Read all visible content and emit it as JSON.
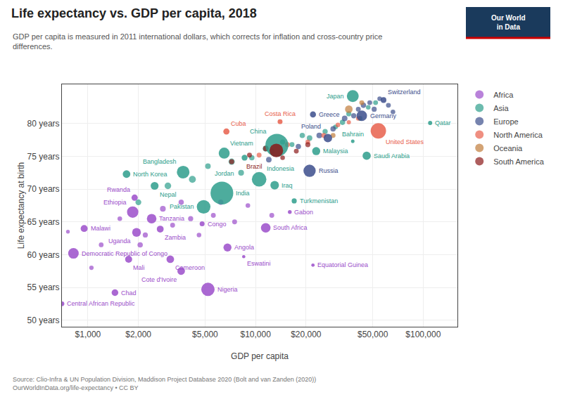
{
  "chart_data": {
    "type": "scatter",
    "title": "Life expectancy vs. GDP per capita, 2018",
    "subtitle": "GDP per capita is measured in 2011 international dollars, which corrects for inflation and cross-country price\ndifferences.",
    "xlabel": "GDP per capita",
    "ylabel": "Life expectancy at birth",
    "source": "Source: Clio-Infra & UN Population Division, Maddison Project Database 2020 (Bolt and van Zanden (2020))\nOurWorldInData.org/life-expectancy • CC BY",
    "annotations": [
      "Our World\nin Data"
    ],
    "log": "x",
    "grid": true,
    "legend": "right",
    "marker": "circle",
    "xlim": [
      700,
      160000
    ],
    "ylim": [
      49,
      86
    ],
    "xticks": [
      {
        "value": 1000,
        "label": "$1,000"
      },
      {
        "value": 2000,
        "label": "$2,000"
      },
      {
        "value": 5000,
        "label": "$5,000"
      },
      {
        "value": 10000,
        "label": "$10,000"
      },
      {
        "value": 20000,
        "label": "$20,000"
      },
      {
        "value": 50000,
        "label": "$50,000"
      },
      {
        "value": 100000,
        "label": "$100,000"
      }
    ],
    "yticks": [
      {
        "value": 50,
        "label": "50 years"
      },
      {
        "value": 55,
        "label": "55 years"
      },
      {
        "value": 60,
        "label": "60 years"
      },
      {
        "value": 65,
        "label": "65 years"
      },
      {
        "value": 70,
        "label": "70 years"
      },
      {
        "value": 75,
        "label": "75 years"
      },
      {
        "value": 80,
        "label": "80 years"
      }
    ],
    "series": [
      {
        "name": "Africa",
        "color": "#9B4DCA",
        "labels": [
          "Central African Republic",
          "Democratic Republic of Congo",
          "Malawi",
          "Mali",
          "Chad",
          "Ethiopia",
          "Rwanda",
          "Uganda",
          "Tanzania",
          "Zambia",
          "Congo",
          "Cameroon",
          "Cote d'Ivoire",
          "Nigeria",
          "Angola",
          "Eswatini",
          "South Africa",
          "Gabon",
          "Equatorial Guinea",
          null,
          null,
          null,
          null,
          null,
          null,
          null,
          null,
          null,
          null,
          null,
          null,
          null,
          null,
          null,
          null
        ],
        "x": [
          700,
          820,
          950,
          1750,
          1450,
          1850,
          1900,
          1950,
          2400,
          2700,
          4800,
          3100,
          3600,
          5200,
          6800,
          8500,
          11500,
          16000,
          22000,
          760,
          1050,
          1200,
          1550,
          2050,
          2200,
          2800,
          3200,
          3600,
          4100,
          4600,
          5600,
          6200,
          7500,
          9000,
          12500
        ],
        "values": [
          52.5,
          60.2,
          64.0,
          59.3,
          54.2,
          66.5,
          68.7,
          63.4,
          65.5,
          63.9,
          64.7,
          59.3,
          57.5,
          54.7,
          61.1,
          59.7,
          64.1,
          66.5,
          58.4,
          63.5,
          58.0,
          61.5,
          65.5,
          61.5,
          63.0,
          67.0,
          64.5,
          68.0,
          65.5,
          63.0,
          66.0,
          68.0,
          65.0,
          67.5,
          66.0
        ],
        "pop": [
          4745000,
          84070000,
          18629000,
          19080000,
          15780000,
          109220000,
          12310000,
          42860000,
          57310000,
          17350000,
          5245000,
          25220000,
          25070000,
          195880000,
          30810000,
          1148000,
          57780000,
          2050000,
          1309000,
          2000000,
          3500000,
          4500000,
          4000000,
          7000000,
          6000000,
          9000000,
          5000000,
          7000000,
          6000000,
          4000000,
          5000000,
          7000000,
          5000000,
          4000000,
          5000000
        ]
      },
      {
        "name": "Asia",
        "color": "#2E9E8C",
        "labels": [
          "North Korea",
          "Bangladesh",
          "Nepal",
          "Pakistan",
          "India",
          "Vietnam",
          "Indonesia",
          "Iraq",
          "Jordan",
          "China",
          "Malaysia",
          "Bahrain",
          "Saudi Arabia",
          "Japan",
          "Qatar",
          "Turkmenistan",
          null,
          null,
          null,
          null,
          null,
          null,
          null,
          null,
          null,
          null,
          null,
          null,
          null,
          null,
          null,
          null,
          null,
          null,
          null,
          null
        ],
        "x": [
          1700,
          3700,
          2500,
          4900,
          6300,
          6500,
          10500,
          13000,
          8600,
          13400,
          23000,
          38000,
          46000,
          38000,
          110000,
          17000,
          2000,
          3000,
          4200,
          5200,
          7200,
          8200,
          9500,
          11500,
          12500,
          14500,
          16500,
          19000,
          21000,
          26000,
          30000,
          33000,
          36000,
          42000,
          47000,
          52000
        ],
        "values": [
          72.3,
          72.6,
          70.5,
          67.3,
          69.4,
          75.5,
          71.5,
          70.6,
          74.8,
          76.7,
          75.8,
          77.3,
          75.1,
          84.2,
          80.1,
          68.2,
          68.0,
          70.5,
          71.5,
          73.5,
          74.2,
          72.5,
          74.8,
          76.2,
          75.8,
          77.2,
          76.8,
          78.2,
          77.8,
          78.8,
          79.5,
          80.2,
          81.5,
          80.8,
          82.5,
          83.2
        ],
        "pop": [
          25550000,
          161380000,
          28090000,
          212230000,
          1352620000,
          95540000,
          267670000,
          38430000,
          9956000,
          1392730000,
          31530000,
          1569000,
          33700000,
          126530000,
          2781000,
          5851000,
          10000000,
          15000000,
          18000000,
          8000000,
          12000000,
          9000000,
          7000000,
          11000000,
          8000000,
          6000000,
          5000000,
          7000000,
          8000000,
          6000000,
          5000000,
          7000000,
          6000000,
          5000000,
          4000000,
          5000000
        ]
      },
      {
        "name": "Europe",
        "color": "#3C4E8C",
        "labels": [
          "Russia",
          "Poland",
          "Greece",
          "Germany",
          "Switzerland",
          null,
          null,
          null,
          null,
          null,
          null,
          null,
          null,
          null,
          null,
          null,
          null,
          null
        ],
        "x": [
          21000,
          27000,
          22000,
          43000,
          58000,
          12000,
          18000,
          24000,
          29000,
          34000,
          38500,
          41000,
          44000,
          48000,
          51000,
          55000,
          62000,
          66000
        ],
        "values": [
          72.8,
          77.8,
          81.4,
          81.2,
          83.6,
          74.5,
          76.5,
          78.2,
          79.2,
          80.8,
          81.2,
          82.2,
          82.8,
          83.2,
          82.2,
          83.8,
          82.8,
          81.8
        ],
        "pop": [
          144500000,
          37980000,
          10730000,
          82790000,
          8510000,
          8000000,
          7000000,
          9000000,
          7000000,
          8000000,
          6000000,
          5000000,
          7000000,
          5000000,
          6000000,
          4000000,
          5000000,
          4000000
        ]
      },
      {
        "name": "North America",
        "color": "#E8604C",
        "labels": [
          "Cuba",
          "Costa Rica",
          "United States",
          null,
          null,
          null,
          null,
          null,
          null,
          null
        ],
        "x": [
          6700,
          14000,
          54000,
          10500,
          15500,
          20500,
          25500,
          31000,
          36000,
          41000
        ],
        "values": [
          78.8,
          80.3,
          78.9,
          75.2,
          76.8,
          77.2,
          78.2,
          79.8,
          80.2,
          80.8
        ],
        "pop": [
          11338000,
          4999000,
          327167000,
          5000000,
          6000000,
          4000000,
          5000000,
          4000000,
          3000000,
          4000000
        ]
      },
      {
        "name": "Oceania",
        "color": "#C07C3A",
        "x": [
          29000,
          36000,
          43000
        ],
        "values": [
          78.2,
          82.2,
          83.2
        ],
        "pop": [
          5000000,
          25000000,
          5000000
        ]
      },
      {
        "name": "South America",
        "color": "#8B1A1A",
        "labels": [
          "Brazil",
          null,
          null,
          null,
          null,
          null,
          null
        ],
        "x": [
          13300,
          7200,
          9200,
          11500,
          14500,
          17500,
          20500
        ],
        "values": [
          75.9,
          74.2,
          75.2,
          76.2,
          74.8,
          75.8,
          76.8
        ],
        "pop": [
          209470000,
          6000000,
          5000000,
          7000000,
          4000000,
          5000000,
          6000000
        ]
      }
    ]
  }
}
